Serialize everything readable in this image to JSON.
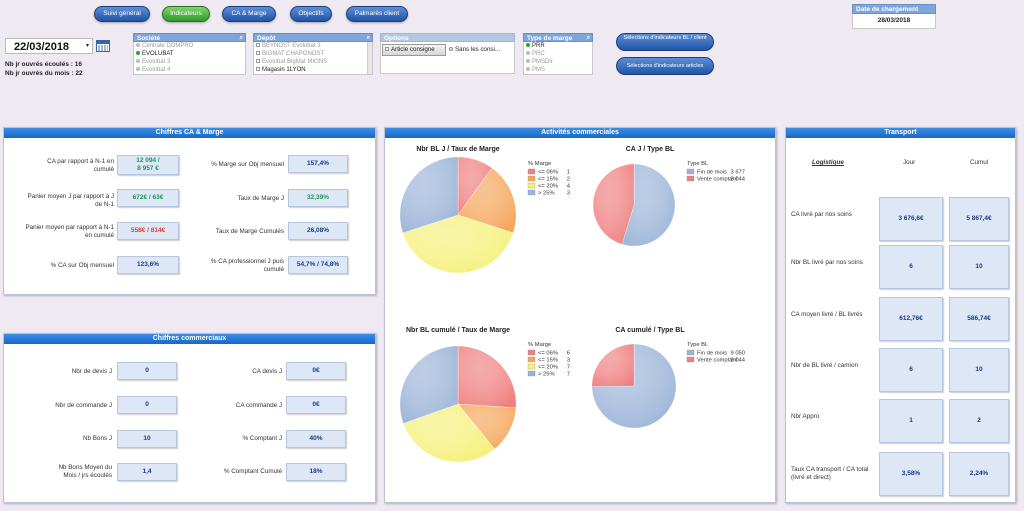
{
  "nav": [
    "Suivi général",
    "Indicateurs",
    "CA & Marge",
    "Objectifs",
    "Palmarès client"
  ],
  "date_chargement": {
    "label": "Date de chargement",
    "value": "28/03/2018"
  },
  "date_picker": {
    "value": "22/03/2018"
  },
  "jours": {
    "ecoules": "Nb jr ouvrés écoulés : 16",
    "mois": "Nb jr ouvrés du mois : 22"
  },
  "societe": {
    "header": "Société",
    "items": [
      "Centrale DOMPRO",
      "EVOLUBAT",
      "Evolubat 3",
      "Evolubat 4"
    ]
  },
  "depot": {
    "header": "Dépôt",
    "items": [
      "BEYNOST Evolubat 3",
      "BIGMAT CHAPONOST",
      "Evolubat BigMat MIONS",
      "Magasin 1LYON"
    ]
  },
  "options": {
    "header": "Options",
    "button": "Article consigne",
    "check": "Sans les consi..."
  },
  "type_marge": {
    "header": "Type de marge",
    "items": [
      "PRR",
      "PRC",
      "PMSDir",
      "PMS"
    ]
  },
  "buttons": {
    "sel_bl": "Sélections d'indicateurs BL / client",
    "sel_articles": "Sélections d'indicateurs articles"
  },
  "ca_marge": {
    "title": "Chiffres CA & Marge",
    "rows": [
      {
        "label": "CA par rapport à N-1 en cumulé",
        "value1": "12 094 /",
        "value2": "8 957 €",
        "label2": "% Marge sur Obj mensuel",
        "value3": "157,4%"
      },
      {
        "label": "Panier moyen J par rapport à J de N-1",
        "value1": "672€ / 63€",
        "label2": "Taux de Marge J",
        "value3": "32,39%"
      },
      {
        "label": "Panier moyen par rapport à N-1 en cumulé",
        "value1": "558€ / 814€",
        "label2": "Taux de Marge Cumulés",
        "value3": "26,08%"
      },
      {
        "label": "% CA sur Obj mensuel",
        "value1": "123,6%",
        "label2": "% CA professionnel J puis cumulé",
        "value3": "54,7% / 74,8%"
      }
    ]
  },
  "commerciaux": {
    "title": "Chiffres commerciaux",
    "rows": [
      {
        "label": "Nbr de devis J",
        "value": "0",
        "label2": "CA devis J",
        "value2": "0€"
      },
      {
        "label": "Nbr de commande J",
        "value": "0",
        "label2": "CA commande J",
        "value2": "0€"
      },
      {
        "label": "Nb Bons J",
        "value": "10",
        "label2": "% Comptant J",
        "value2": "40%"
      },
      {
        "label": "Nb Bons Moyen du Mois / jrs écoulés",
        "value": "1,4",
        "label2": "% Comptant Cumulé",
        "value2": "18%"
      }
    ]
  },
  "activites": {
    "title": "Activités commerciales",
    "chart1": {
      "title": "Nbr BL J / Taux de Marge",
      "legend_title": "% Marge"
    },
    "chart2": {
      "title": "CA J / Type BL",
      "legend_title": "Type BL"
    },
    "chart3": {
      "title": "Nbr BL cumulé / Taux de Marge",
      "legend_title": "% Marge"
    },
    "chart4": {
      "title": "CA cumulé / Type BL",
      "legend_title": "Type BL"
    }
  },
  "chart_data": [
    {
      "type": "pie",
      "title": "Nbr BL J / Taux de Marge",
      "legend_title": "% Marge",
      "labels": [
        "<= 06%",
        "<= 15%",
        "<= 20%",
        "> 25%"
      ],
      "values": [
        1,
        2,
        4,
        3
      ],
      "colors": [
        "#f08080",
        "#f5a65b",
        "#f5f07a",
        "#9bb4d8"
      ]
    },
    {
      "type": "pie",
      "title": "CA J / Type BL",
      "legend_title": "Type BL",
      "labels": [
        "Fin de mois",
        "Vente comptant"
      ],
      "values": [
        3677,
        3044
      ],
      "value_labels": [
        "3 677",
        "3 044"
      ],
      "colors": [
        "#9bb4d8",
        "#f08080"
      ]
    },
    {
      "type": "pie",
      "title": "Nbr BL cumulé / Taux de Marge",
      "legend_title": "% Marge",
      "labels": [
        "<= 06%",
        "<= 15%",
        "<= 20%",
        "> 25%"
      ],
      "values": [
        6,
        3,
        7,
        7
      ],
      "colors": [
        "#f08080",
        "#f5a65b",
        "#f5f07a",
        "#9bb4d8"
      ]
    },
    {
      "type": "pie",
      "title": "CA cumulé / Type BL",
      "legend_title": "Type BL",
      "labels": [
        "Fin de mois",
        "Vente comptant"
      ],
      "values": [
        9050,
        3044
      ],
      "value_labels": [
        "9 050",
        "3 044"
      ],
      "colors": [
        "#9bb4d8",
        "#f08080"
      ]
    }
  ],
  "transport": {
    "title": "Transport",
    "col_logistique": "Logistique",
    "col_jour": "Jour",
    "col_cumul": "Cumul",
    "rows": [
      {
        "label": "CA livré par nos soins",
        "jour": "3 676,6€",
        "cumul": "5 867,4€"
      },
      {
        "label": "Nbr BL livré par nos soins",
        "jour": "6",
        "cumul": "10"
      },
      {
        "label": "CA moyen livré / BL livrés",
        "jour": "612,76€",
        "cumul": "586,74€"
      },
      {
        "label": "Nbr de BL livré / camion",
        "jour": "6",
        "cumul": "10"
      },
      {
        "label": "Nbr Appro",
        "jour": "1",
        "cumul": "2"
      },
      {
        "label": "Taux CA transport / CA total (livré et direct)",
        "jour": "3,58%",
        "cumul": "2,24%"
      }
    ]
  }
}
